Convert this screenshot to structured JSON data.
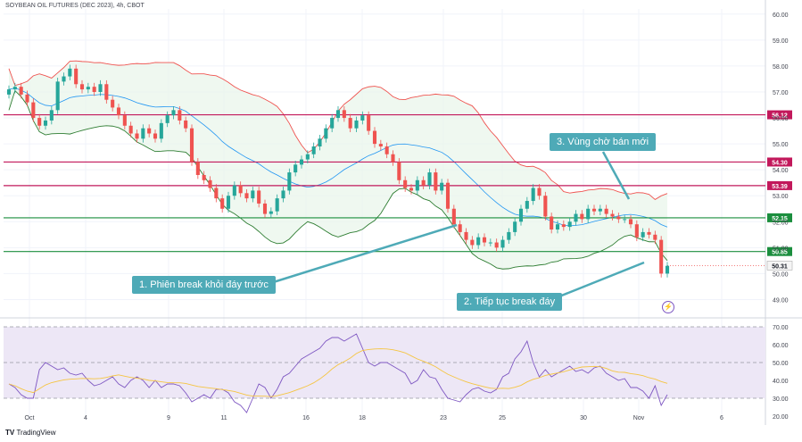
{
  "title": "SOYBEAN OIL FUTURES (DEC 2023), 4h, CBOT",
  "brand": "TradingView",
  "annotations": [
    {
      "id": "break-prior-bottom",
      "text": "1. Phiên break khỏi đáy trước"
    },
    {
      "id": "continue-break",
      "text": "2. Tiếp tục break đáy"
    },
    {
      "id": "sell-zone",
      "text": "3. Vùng chờ bán mới"
    }
  ],
  "chart_data": {
    "type": "candlestick",
    "x_ticks": [
      "Oct",
      "4",
      "9",
      "11",
      "16",
      "18",
      "23",
      "25",
      "30",
      "Nov",
      "6"
    ],
    "price_axis": {
      "ylim": [
        48.5,
        60.2
      ],
      "ticks": [
        "60.00",
        "59.00",
        "58.00",
        "57.00",
        "56.00",
        "55.00",
        "54.00",
        "53.00",
        "52.00",
        "51.00",
        "50.00",
        "49.00"
      ]
    },
    "rsi_axis": {
      "ylim": [
        18,
        72
      ],
      "ticks": [
        "70.00",
        "60.00",
        "50.00",
        "40.00",
        "30.00",
        "20.00"
      ],
      "band": [
        30,
        70
      ]
    },
    "levels": [
      {
        "value": 56.12,
        "label": "56.12",
        "color": "#c2185b"
      },
      {
        "value": 54.3,
        "label": "54.30",
        "color": "#c2185b"
      },
      {
        "value": 53.39,
        "label": "53.39",
        "color": "#c2185b"
      },
      {
        "value": 52.15,
        "label": "52.15",
        "color": "#1b8e3e"
      },
      {
        "value": 50.85,
        "label": "50.85",
        "color": "#1b8e3e"
      }
    ],
    "last_price": {
      "value": 50.31,
      "label": "50.31"
    },
    "colors": {
      "up": "#26a69a",
      "down": "#ef5350",
      "bb_upper": "#ef5350",
      "bb_lower": "#2e7d32",
      "bb_basis": "#2196f3",
      "bb_fill": "#e8f5e9",
      "rsi": "#7e57c2",
      "rsi_ma": "#f5c542",
      "rsi_band": "#ede7f6"
    },
    "closes": [
      57.1,
      57.2,
      56.9,
      56.6,
      56.0,
      55.7,
      55.9,
      56.3,
      57.4,
      57.6,
      57.9,
      57.3,
      57.1,
      57.2,
      57.0,
      57.3,
      56.7,
      56.4,
      56.1,
      55.7,
      55.4,
      55.2,
      55.6,
      55.4,
      55.2,
      55.8,
      56.1,
      56.3,
      55.9,
      55.6,
      54.3,
      53.8,
      53.6,
      53.3,
      52.9,
      52.5,
      53.0,
      53.4,
      53.1,
      52.9,
      53.2,
      52.7,
      52.3,
      52.4,
      52.9,
      53.2,
      53.9,
      54.2,
      54.4,
      54.6,
      54.9,
      55.2,
      55.6,
      56.0,
      56.3,
      56.0,
      55.6,
      55.9,
      56.1,
      55.5,
      55.0,
      54.9,
      54.6,
      54.3,
      53.6,
      53.3,
      53.2,
      53.6,
      53.4,
      53.9,
      53.2,
      53.5,
      52.5,
      51.9,
      51.6,
      51.3,
      51.1,
      51.4,
      51.2,
      51.2,
      51.0,
      51.3,
      51.6,
      52.0,
      52.5,
      52.8,
      53.3,
      53.0,
      52.2,
      51.7,
      51.9,
      51.8,
      52.0,
      52.3,
      52.1,
      52.5,
      52.4,
      52.5,
      52.3,
      52.2,
      52.1,
      52.1,
      51.9,
      51.4,
      51.6,
      51.5,
      51.3,
      50.0,
      50.3
    ],
    "rsi": [
      38,
      36,
      32,
      30,
      30,
      46,
      50,
      48,
      46,
      47,
      44,
      43,
      44,
      40,
      37,
      38,
      40,
      42,
      38,
      36,
      40,
      42,
      40,
      36,
      40,
      36,
      38,
      38,
      37,
      33,
      28,
      30,
      32,
      30,
      35,
      35,
      33,
      28,
      26,
      22,
      30,
      38,
      36,
      30,
      35,
      42,
      44,
      48,
      52,
      54,
      56,
      58,
      62,
      64,
      64,
      62,
      64,
      66,
      58,
      50,
      48,
      50,
      50,
      48,
      46,
      44,
      38,
      40,
      46,
      42,
      41,
      35,
      30,
      29,
      28,
      32,
      35,
      36,
      34,
      33,
      35,
      42,
      44,
      52,
      56,
      62,
      50,
      42,
      46,
      42,
      44,
      46,
      48,
      45,
      46,
      44,
      47,
      48,
      44,
      42,
      40,
      41,
      36,
      36,
      34,
      30,
      37,
      26,
      32
    ]
  }
}
